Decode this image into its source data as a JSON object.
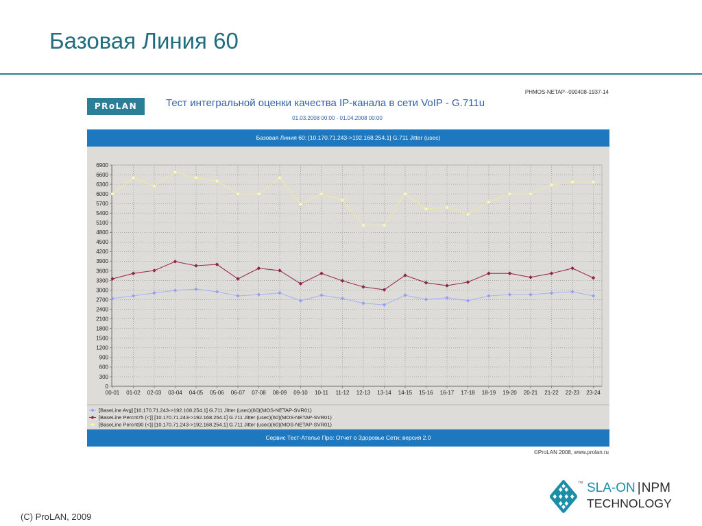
{
  "slide": {
    "title": "Базовая Линия 60",
    "copyright": "(C) ProLAN, 2009"
  },
  "report": {
    "logo_text": "PRoLAN",
    "title": "Тест интегральной оценки качества IP-канала в сети VoIP - G.711u",
    "report_id": "PHMOS-NETAP--090408-1937-14",
    "period": "01.03.2008 00:00 - 01.04.2008 00:00",
    "footer_bar": "Сервис Тест-Ателье Про: Отчет о Здоровье Сети; версия 2.0",
    "copyright": "©ProLAN 2008, www.prolan.ru"
  },
  "brand": {
    "icon": "sla-on-logo-icon",
    "tm": "TM",
    "sla_on": "SLA-ON",
    "separator": "|",
    "npm": "NPM",
    "technology": "TECHNOLOGY"
  },
  "colors": {
    "slide_accent": "#1f6d7d",
    "report_logo_bg": "#2a7f97",
    "report_title": "#2f5fa5",
    "report_bar": "#1e78bf",
    "chart_background": "#dedcd8",
    "brand_teal": "#1c8ea6",
    "brand_dark": "#2b2b2b"
  },
  "chart_data": {
    "type": "line",
    "title": "Базовая Линия 60: [10.170.71.243->192.168.254.1] G.711 Jitter (usec)",
    "categories": [
      "00-01",
      "01-02",
      "02-03",
      "03-04",
      "04-05",
      "05-06",
      "06-07",
      "07-08",
      "08-09",
      "09-10",
      "10-11",
      "11-12",
      "12-13",
      "13-14",
      "14-15",
      "15-16",
      "16-17",
      "17-18",
      "18-19",
      "19-20",
      "20-21",
      "21-22",
      "22-23",
      "23-24"
    ],
    "ylim": [
      0,
      6900
    ],
    "yticks": [
      0,
      300,
      600,
      900,
      1200,
      1500,
      1800,
      2100,
      2400,
      2700,
      3000,
      3300,
      3600,
      3900,
      4200,
      4500,
      4800,
      5100,
      5400,
      5700,
      6000,
      6300,
      6600,
      6900
    ],
    "grid": true,
    "legend": "bottom",
    "series": [
      {
        "name": "[BaseLine Avg] [10.170.71.243->192.168.254.1] G.711 Jitter (usec)(60)(MOS-NETAP-SVR01)",
        "color": "#aab4f2",
        "marker_color": "#8f9cf0",
        "values": [
          2740,
          2820,
          2910,
          2990,
          3030,
          2950,
          2820,
          2860,
          2910,
          2670,
          2840,
          2740,
          2590,
          2540,
          2840,
          2710,
          2760,
          2670,
          2820,
          2860,
          2860,
          2910,
          2950,
          2820
        ]
      },
      {
        "name": "[BaseLine Percnt75 (<)] [10.170.71.243->192.168.254.1] G.711 Jitter (usec)(60)(MOS-NETAP-SVR01)",
        "color": "#9a2f55",
        "marker_color": "#8c2348",
        "values": [
          3350,
          3520,
          3610,
          3890,
          3760,
          3800,
          3350,
          3680,
          3610,
          3200,
          3520,
          3290,
          3100,
          3010,
          3460,
          3230,
          3140,
          3250,
          3520,
          3520,
          3400,
          3520,
          3680,
          3380
        ]
      },
      {
        "name": "[BaseLine Percnt90 (<)] [10.170.71.243->192.168.254.1] G.711 Jitter (usec)(60)(MOS-NETAP-SVR01)",
        "color": "#eee9a2",
        "marker_color": "#fbf8c6",
        "values": [
          6000,
          6500,
          6250,
          6680,
          6500,
          6400,
          6000,
          6000,
          6500,
          5680,
          6000,
          5810,
          5020,
          5020,
          6000,
          5530,
          5580,
          5360,
          5750,
          6000,
          6000,
          6280,
          6370,
          6370
        ]
      }
    ]
  }
}
